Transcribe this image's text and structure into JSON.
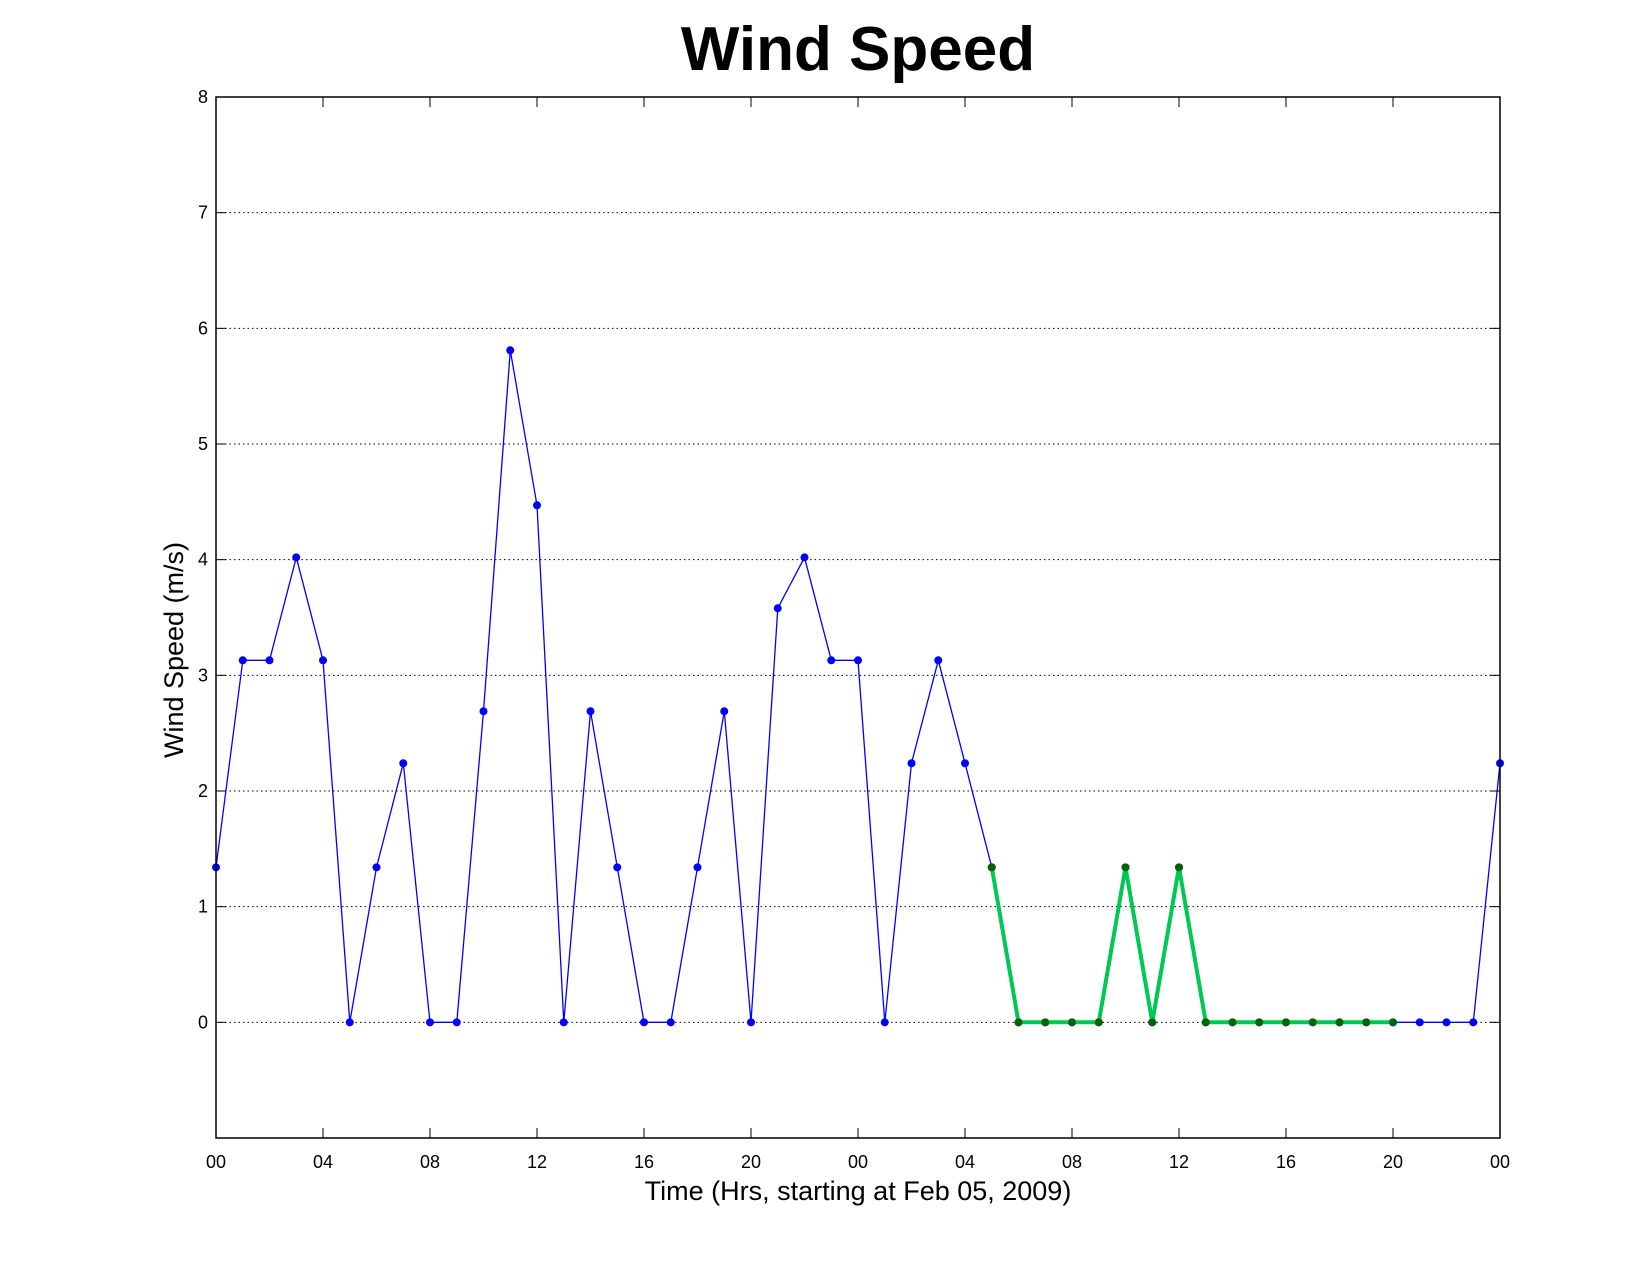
{
  "chart_data": {
    "type": "line",
    "title": "Wind Speed",
    "xlabel": "Time (Hrs, starting at Feb 05, 2009)",
    "ylabel": "Wind Speed (m/s)",
    "xlim": [
      0,
      48
    ],
    "ylim": [
      -1,
      8
    ],
    "grid": "horizontal dotted",
    "x_ticks": [
      {
        "at": 0,
        "label": "00"
      },
      {
        "at": 4,
        "label": "04"
      },
      {
        "at": 8,
        "label": "08"
      },
      {
        "at": 12,
        "label": "12"
      },
      {
        "at": 16,
        "label": "16"
      },
      {
        "at": 20,
        "label": "20"
      },
      {
        "at": 24,
        "label": "00"
      },
      {
        "at": 28,
        "label": "04"
      },
      {
        "at": 32,
        "label": "08"
      },
      {
        "at": 36,
        "label": "12"
      },
      {
        "at": 40,
        "label": "16"
      },
      {
        "at": 44,
        "label": "20"
      },
      {
        "at": 48,
        "label": "00"
      }
    ],
    "y_ticks": [
      0,
      1,
      2,
      3,
      4,
      5,
      6,
      7,
      8
    ],
    "series": [
      {
        "color": "#0000ff",
        "marker_color": "#0000ff",
        "x": [
          0,
          1,
          2,
          3,
          4,
          5,
          6,
          7,
          8,
          9,
          10,
          11,
          12,
          13,
          14,
          15,
          16,
          17,
          18,
          19,
          20,
          21,
          22,
          23,
          24,
          25,
          26,
          27,
          28,
          29,
          30,
          31,
          32,
          33,
          34,
          35,
          36,
          37,
          38,
          39,
          40,
          41,
          42,
          43,
          44,
          45,
          46,
          47,
          48
        ],
        "y": [
          1.34,
          3.13,
          3.13,
          4.02,
          3.13,
          0,
          1.34,
          2.24,
          0,
          0,
          2.69,
          5.81,
          4.47,
          0,
          2.69,
          1.34,
          0,
          0,
          1.34,
          2.69,
          0,
          3.58,
          4.02,
          3.13,
          3.13,
          0,
          2.24,
          3.13,
          2.24,
          1.34,
          0,
          0,
          0,
          0,
          1.34,
          0,
          1.34,
          0,
          0,
          0,
          0,
          0,
          0,
          0,
          0,
          0,
          0,
          0,
          2.24
        ]
      },
      {
        "color": "#00c853",
        "marker_color": "#006400",
        "x": [
          29,
          30,
          31,
          32,
          33,
          34,
          35,
          36,
          37,
          38,
          39,
          40,
          41,
          42,
          43,
          44
        ],
        "y": [
          1.34,
          0,
          0,
          0,
          0,
          1.34,
          0,
          1.34,
          0,
          0,
          0,
          0,
          0,
          0,
          0,
          0
        ]
      }
    ]
  }
}
